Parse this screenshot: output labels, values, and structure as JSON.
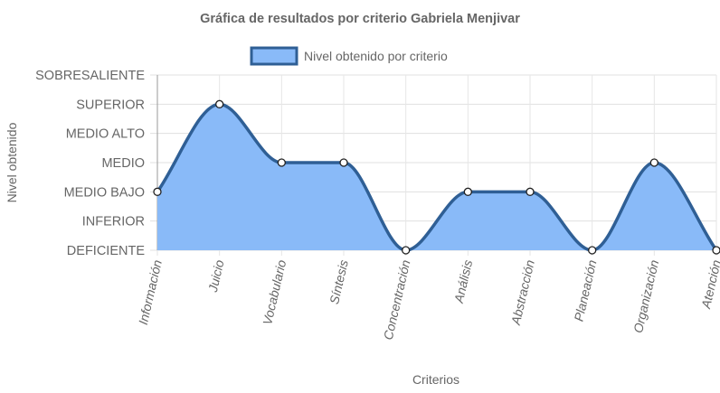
{
  "chart_data": {
    "type": "area",
    "title": "Gráfica de resultados por criterio Gabriela Menjivar",
    "xlabel": "Criterios",
    "ylabel": "Nivel obtenido",
    "categories": [
      "Información",
      "Juicio",
      "Vocabulario",
      "Síntesis",
      "Concentración",
      "Análisis",
      "Abstracción",
      "Planeación",
      "Organización",
      "Atención"
    ],
    "y_levels": [
      "DEFICIENTE",
      "INFERIOR",
      "MEDIO BAJO",
      "MEDIO",
      "MEDIO ALTO",
      "SUPERIOR",
      "SOBRESALIENTE"
    ],
    "ylim": [
      0,
      6
    ],
    "series": [
      {
        "name": "Nivel obtenido por criterio",
        "values": [
          2,
          5,
          3,
          3,
          0,
          2,
          2,
          0,
          3,
          0
        ],
        "fill": "#89baf8",
        "stroke": "#2f5f95"
      }
    ],
    "legend_position": "top",
    "grid": true,
    "smooth": true
  }
}
